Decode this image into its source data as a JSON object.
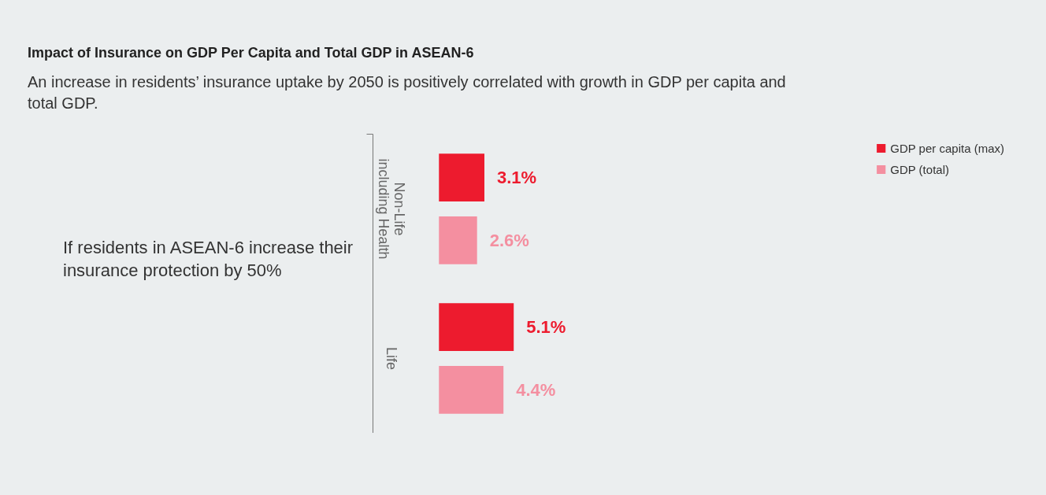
{
  "chart_data": {
    "type": "bar",
    "orientation": "horizontal",
    "title": "Impact of Insurance on GDP Per Capita and Total GDP in ASEAN-6",
    "subtitle": "An increase in residents’ insurance uptake by 2050 is positively correlated with growth in GDP per capita and total GDP.",
    "categories": [
      "Non-Life\nincluding Health",
      "Life"
    ],
    "series": [
      {
        "name": "GDP per capita (max)",
        "color": "#ed1b2e",
        "values": [
          3.1,
          5.1
        ],
        "value_labels": [
          "3.1%",
          "5.1%"
        ]
      },
      {
        "name": "GDP (total)",
        "color": "#f48fa0",
        "values": [
          2.6,
          4.4
        ],
        "value_labels": [
          "2.6%",
          "4.4%"
        ]
      }
    ],
    "legend": "top right",
    "grid": false,
    "annotations": [
      "If residents in ASEAN-6 increase their insurance protection by 50%"
    ]
  }
}
